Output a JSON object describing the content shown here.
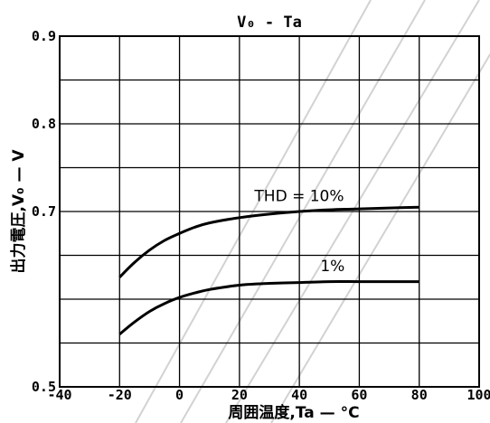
{
  "chart_data": {
    "type": "line",
    "title": "V₀ - Ta",
    "xlabel": "周囲温度,Ta — °C",
    "ylabel": "出力電圧,V₀ — V",
    "xlim": [
      -40,
      100
    ],
    "ylim": [
      0.5,
      0.9
    ],
    "x_ticks": [
      -40,
      -20,
      0,
      20,
      40,
      60,
      80,
      100
    ],
    "y_ticks": [
      0.5,
      0.6,
      0.7,
      0.8,
      0.9
    ],
    "x_tick_labels": [
      "-40",
      "-20",
      "0",
      "20",
      "40",
      "60",
      "80",
      "100"
    ],
    "y_tick_labels": [
      "0.5",
      "",
      "0.7",
      "0.8",
      "0.9"
    ],
    "grid": true,
    "y_minor_grid": [
      0.55,
      0.65,
      0.75,
      0.85
    ],
    "series": [
      {
        "name": "THD = 10%",
        "x": [
          -20,
          -15,
          -10,
          -5,
          0,
          5,
          10,
          20,
          30,
          40,
          50,
          60,
          70,
          80
        ],
        "y": [
          0.625,
          0.642,
          0.656,
          0.667,
          0.675,
          0.682,
          0.687,
          0.693,
          0.697,
          0.7,
          0.702,
          0.703,
          0.704,
          0.705
        ]
      },
      {
        "name": "1%",
        "x": [
          -20,
          -15,
          -10,
          -5,
          0,
          5,
          10,
          20,
          30,
          40,
          50,
          60,
          70,
          80
        ],
        "y": [
          0.56,
          0.574,
          0.586,
          0.595,
          0.602,
          0.607,
          0.611,
          0.616,
          0.618,
          0.619,
          0.62,
          0.62,
          0.62,
          0.62
        ]
      }
    ],
    "annotations": [
      {
        "text": "THD = 10%",
        "x": 25,
        "y": 0.712
      },
      {
        "text": "1%",
        "x": 47,
        "y": 0.632
      }
    ]
  }
}
